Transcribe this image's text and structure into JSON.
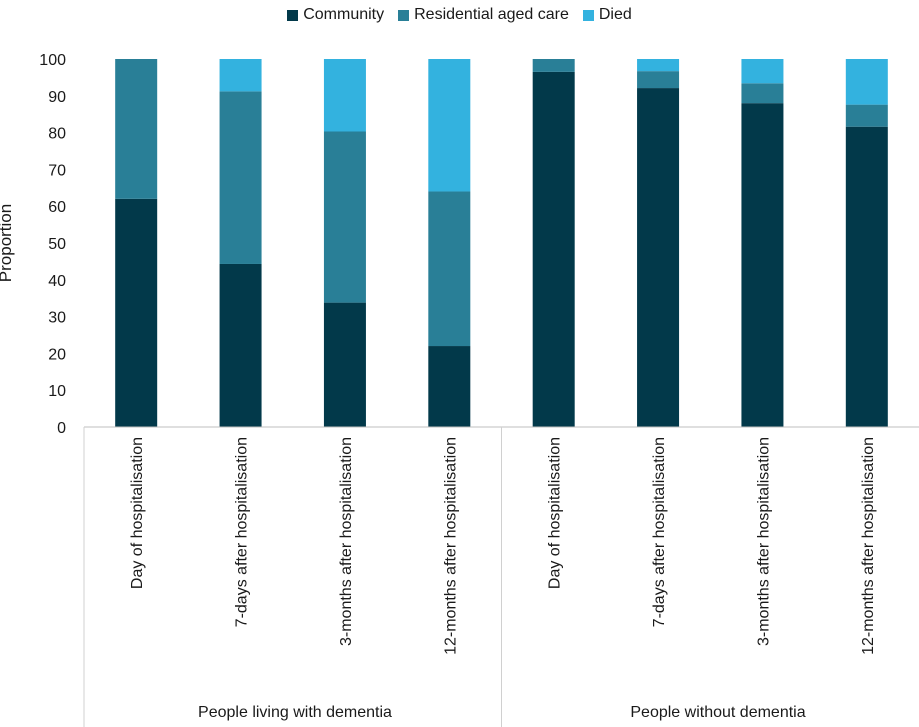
{
  "legend": [
    {
      "name": "Community",
      "color": "#02394a"
    },
    {
      "name": "Residential aged care",
      "color": "#297f97"
    },
    {
      "name": "Died",
      "color": "#33b2df"
    }
  ],
  "chart_data": {
    "type": "bar",
    "stacked": true,
    "ylabel": "Proportion",
    "ylim": [
      0,
      100
    ],
    "yticks": [
      0,
      10,
      20,
      30,
      40,
      50,
      60,
      70,
      80,
      90,
      100
    ],
    "grid": false,
    "legend_position": "top",
    "groups": [
      "People living with dementia",
      "People without dementia"
    ],
    "categories": [
      "Day of hospitalisation",
      "7-days after hospitalisation",
      "3-months after hospitalisation",
      "12-months after hospitalisation",
      "Day of hospitalisation",
      "7-days after hospitalisation",
      "3-months after hospitalisation",
      "12-months after hospitalisation"
    ],
    "series": [
      {
        "name": "Community",
        "color": "#02394a",
        "values": [
          62,
          44.3,
          33.8,
          22,
          96.5,
          92.1,
          88,
          81.6
        ]
      },
      {
        "name": "Residential aged care",
        "color": "#297f97",
        "values": [
          38,
          46.9,
          46.5,
          42,
          3.5,
          4.6,
          5.4,
          6
        ]
      },
      {
        "name": "Died",
        "color": "#33b2df",
        "values": [
          0,
          8.8,
          19.7,
          36,
          0,
          3.3,
          6.6,
          12.4
        ]
      }
    ]
  }
}
